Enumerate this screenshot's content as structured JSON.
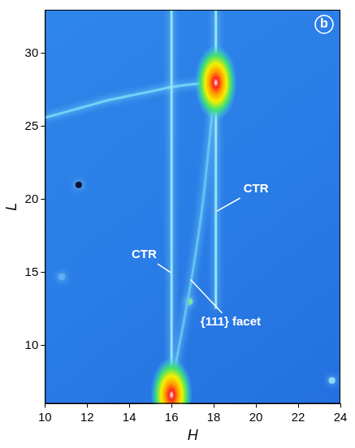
{
  "chart_data": {
    "type": "scatter",
    "panel_label": "b",
    "x_label": "H",
    "y_label": "L",
    "xlim": [
      10,
      24
    ],
    "xticks": [
      10,
      12,
      14,
      16,
      18,
      20,
      22,
      24
    ],
    "ylim": [
      6,
      33
    ],
    "yticks": [
      10,
      15,
      20,
      25,
      30
    ],
    "grid": false,
    "series": [
      {
        "color": "#8fe6f5",
        "line_style": "solid",
        "x": [
          16.0,
          16.0
        ],
        "y": [
          6.0,
          33.0
        ]
      },
      {
        "color": "#8fe6f5",
        "line_style": "solid",
        "x": [
          18.1,
          18.1
        ],
        "y": [
          12.5,
          33.0
        ]
      },
      {
        "color": "#5fc4f2",
        "line_style": "solid",
        "x": [
          16.1,
          16.5,
          17.0,
          17.5,
          18.0
        ],
        "y": [
          8.0,
          11.0,
          15.0,
          20.0,
          27.0
        ]
      },
      {
        "color": "#6fd4f5",
        "line_style": "solid",
        "x": [
          10.0,
          11.0,
          12.0,
          13.0,
          14.0,
          15.0,
          16.0,
          17.0,
          18.1
        ],
        "y": [
          25.6,
          26.0,
          26.4,
          26.8,
          27.1,
          27.4,
          27.7,
          27.9,
          28.0
        ]
      }
    ],
    "peaks": [
      {
        "x": 18.1,
        "y": 28.0
      },
      {
        "x": 16.0,
        "y": 6.6
      }
    ],
    "spots": [
      {
        "x": 16.85,
        "y": 13.0,
        "color": "#7fe08a"
      },
      {
        "x": 23.6,
        "y": 7.6,
        "color": "#8fd8f8"
      },
      {
        "x": 11.6,
        "y": 21.0,
        "color": "#101030"
      },
      {
        "x": 10.8,
        "y": 14.7,
        "color": "#5fb0f4"
      }
    ],
    "annotations": [
      {
        "text": "CTR",
        "x": 18.15,
        "y": 19.2,
        "text_x": 20.0,
        "text_y": 20.7
      },
      {
        "text": "CTR",
        "x": 15.95,
        "y": 15.0,
        "text_x": 14.7,
        "text_y": 16.2
      },
      {
        "text": "{111} facet",
        "x": 16.9,
        "y": 14.5,
        "text_x": 18.8,
        "text_y": 11.6
      }
    ]
  }
}
